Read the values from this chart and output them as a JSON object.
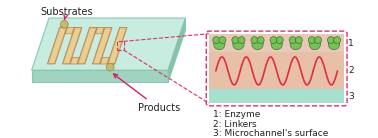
{
  "fig_width": 3.78,
  "fig_height": 1.38,
  "dpi": 100,
  "bg_color": "#ffffff",
  "chip": {
    "top_color": "#c8ede0",
    "top_edge": "#88c8b0",
    "front_color": "#a0d4c0",
    "front_edge": "#88c8b0",
    "right_color": "#88c0a8",
    "right_edge": "#88c8b0"
  },
  "channel_color": "#d4a878",
  "channel_edge": "#b88858",
  "channel_inner": "#e8d090",
  "port_color": "#c8b870",
  "port_edge": "#a09050",
  "substrates_label": "Substrates",
  "products_label": "Products",
  "label_color": "#222222",
  "arrow_color": "#d42060",
  "inset": {
    "border_color": "#e0306a",
    "layer_enzyme_color": "#e8c8b8",
    "layer_linker_color": "#e8c0a8",
    "layer_surface_color": "#a8e0d0",
    "enzyme_fill": "#78c058",
    "enzyme_edge": "#3a7a28",
    "linker_color": "#e03040",
    "label1": "1: Enzyme",
    "label2": "2: Linkers",
    "label3": "3: Microchannel's surface",
    "num1": "1",
    "num2": "2",
    "num3": "3"
  },
  "title_fontsize": 7,
  "legend_fontsize": 6.5
}
